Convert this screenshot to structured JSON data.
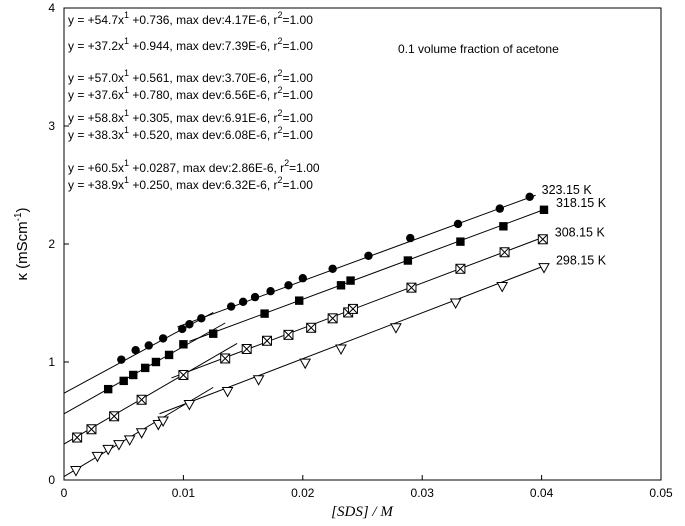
{
  "chart_data": {
    "type": "scatter",
    "xlabel": "[SDS] / M",
    "ylabel_main": "κ (mScm",
    "ylabel_sup": "-1",
    "ylabel_close": ")",
    "xlim": [
      0,
      0.05
    ],
    "ylim": [
      0,
      4
    ],
    "x_ticks": [
      0,
      0.01,
      0.02,
      0.03,
      0.04,
      0.05
    ],
    "x_tick_labels": [
      "0",
      "0.01",
      "0.02",
      "0.03",
      "0.04",
      "0.05"
    ],
    "y_ticks": [
      0,
      1,
      2,
      3,
      4
    ],
    "y_tick_labels": [
      "0",
      "1",
      "2",
      "3",
      "4"
    ],
    "grid": false,
    "legend": "none",
    "annotation": "0.1 volume fraction of acetone",
    "equations": [
      {
        "pre": "y = +54.7x",
        "sup": "1",
        "mid": " +0.736, max dev:4.17E-6, r",
        "sup2": "2",
        "post": "=1.00"
      },
      {
        "pre": "y = +37.2x",
        "sup": "1",
        "mid": " +0.944, max dev:7.39E-6, r",
        "sup2": "2",
        "post": "=1.00"
      },
      {
        "pre": "y = +57.0x",
        "sup": "1",
        "mid": " +0.561, max dev:3.70E-6, r",
        "sup2": "2",
        "post": "=1.00"
      },
      {
        "pre": "y = +37.6x",
        "sup": "1",
        "mid": " +0.780, max dev:6.56E-6, r",
        "sup2": "2",
        "post": "=1.00"
      },
      {
        "pre": "y = +58.8x",
        "sup": "1",
        "mid": " +0.305, max dev:6.91E-6, r",
        "sup2": "2",
        "post": "=1.00"
      },
      {
        "pre": "y = +38.3x",
        "sup": "1",
        "mid": " +0.520, max dev:6.08E-6, r",
        "sup2": "2",
        "post": "=1.00"
      },
      {
        "pre": "y = +60.5x",
        "sup": "1",
        "mid": " +0.0287, max dev:2.86E-6, r",
        "sup2": "2",
        "post": "=1.00"
      },
      {
        "pre": "y = +38.9x",
        "sup": "1",
        "mid": " +0.250, max dev:6.32E-6, r",
        "sup2": "2",
        "post": "=1.00"
      }
    ],
    "series": [
      {
        "name": "323.15 K",
        "marker": "filled-circle",
        "x": [
          0.0048,
          0.006,
          0.0071,
          0.0083,
          0.0099,
          0.0105,
          0.0115,
          0.014,
          0.015,
          0.016,
          0.0173,
          0.0188,
          0.02,
          0.0225,
          0.0255,
          0.029,
          0.033,
          0.0365,
          0.039
        ],
        "y": [
          1.02,
          1.1,
          1.14,
          1.2,
          1.28,
          1.32,
          1.37,
          1.47,
          1.51,
          1.55,
          1.6,
          1.65,
          1.71,
          1.79,
          1.9,
          2.05,
          2.17,
          2.3,
          2.4
        ],
        "fits": [
          {
            "slope": 54.7,
            "intercept": 0.736,
            "x_start": 0.0,
            "x_end": 0.0125
          },
          {
            "slope": 37.2,
            "intercept": 0.944,
            "x_start": 0.0095,
            "x_end": 0.0395
          }
        ]
      },
      {
        "name": "318.15 K",
        "marker": "filled-square",
        "x": [
          0.0037,
          0.005,
          0.0058,
          0.0068,
          0.0077,
          0.0088,
          0.01,
          0.0125,
          0.0168,
          0.0197,
          0.0232,
          0.024,
          0.0288,
          0.0332,
          0.0368,
          0.0402
        ],
        "y": [
          0.77,
          0.84,
          0.89,
          0.95,
          1.0,
          1.06,
          1.15,
          1.24,
          1.41,
          1.52,
          1.65,
          1.69,
          1.86,
          2.02,
          2.15,
          2.29
        ],
        "fits": [
          {
            "slope": 57.0,
            "intercept": 0.561,
            "x_start": 0.0,
            "x_end": 0.0135
          },
          {
            "slope": 37.6,
            "intercept": 0.78,
            "x_start": 0.0105,
            "x_end": 0.0405
          }
        ]
      },
      {
        "name": "308.15 K",
        "marker": "boxed-x",
        "x": [
          0.0011,
          0.0023,
          0.0042,
          0.0065,
          0.01,
          0.0135,
          0.0153,
          0.017,
          0.0188,
          0.0207,
          0.0225,
          0.0238,
          0.0242,
          0.0291,
          0.0332,
          0.0369,
          0.0401
        ],
        "y": [
          0.36,
          0.43,
          0.54,
          0.68,
          0.89,
          1.03,
          1.11,
          1.18,
          1.23,
          1.29,
          1.37,
          1.42,
          1.45,
          1.63,
          1.79,
          1.93,
          2.04
        ],
        "fits": [
          {
            "slope": 58.8,
            "intercept": 0.305,
            "x_start": 0.0,
            "x_end": 0.0145
          },
          {
            "slope": 38.3,
            "intercept": 0.52,
            "x_start": 0.009,
            "x_end": 0.0405
          }
        ]
      },
      {
        "name": "298.15 K",
        "marker": "open-triangle-down",
        "x": [
          0.001,
          0.0028,
          0.0037,
          0.0046,
          0.0055,
          0.0065,
          0.0079,
          0.0083,
          0.0105,
          0.0137,
          0.0163,
          0.0202,
          0.0232,
          0.0278,
          0.0328,
          0.0367,
          0.0402
        ],
        "y": [
          0.08,
          0.2,
          0.26,
          0.3,
          0.34,
          0.4,
          0.47,
          0.5,
          0.64,
          0.75,
          0.85,
          0.99,
          1.11,
          1.29,
          1.5,
          1.64,
          1.8
        ],
        "fits": [
          {
            "slope": 60.5,
            "intercept": 0.0287,
            "x_start": 0.0,
            "x_end": 0.0125
          },
          {
            "slope": 38.9,
            "intercept": 0.25,
            "x_start": 0.008,
            "x_end": 0.0405
          }
        ]
      }
    ]
  }
}
